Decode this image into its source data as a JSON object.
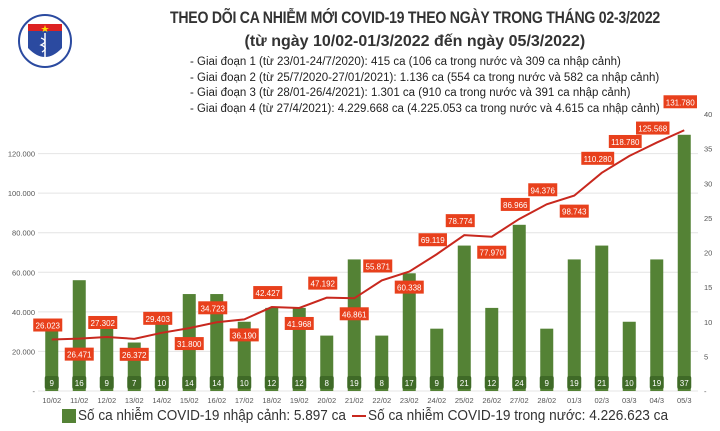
{
  "header": {
    "logo_text": "BỘ Y TẾ",
    "title": "THEO DÕI CA NHIỄM MỚI COVID-19 THEO NGÀY TRONG THÁNG 02-3/2022",
    "subtitle": "(từ ngày 10/02-01/3/2022 đến ngày 05/3/2022)",
    "notes": [
      "- Giai đoạn 1 (từ 23/01-24/7/2020): 415 ca (106 ca trong nước và 309 ca nhập cảnh)",
      "- Giai đoạn 2 (từ 25/7/2020-27/01/2021): 1.136 ca (554 ca trong nước và 582 ca nhập cảnh)",
      "- Giai đoạn 3 (từ 28/01-26/4/2021): 1.301 ca (910 ca trong nước và 391 ca nhập cảnh)",
      "- Giai đoạn 4 (từ 27/4/2021): 4.229.668 ca (4.225.053 ca trong nước và 4.615 ca nhập cảnh)"
    ]
  },
  "chart_data": {
    "type": "bar+line",
    "categories": [
      "10/02",
      "11/02",
      "12/02",
      "13/02",
      "14/02",
      "15/02",
      "16/02",
      "17/02",
      "18/02",
      "19/02",
      "20/02",
      "21/02",
      "22/02",
      "23/02",
      "24/02",
      "25/02",
      "26/02",
      "27/02",
      "28/02",
      "01/3",
      "02/3",
      "03/3",
      "04/3",
      "05/3"
    ],
    "series": [
      {
        "name": "Số ca nhiễm COVID-19 nhập cảnh: 5.897 ca",
        "type": "bar",
        "axis": "right",
        "color": "#548235",
        "values": [
          9,
          16,
          9,
          7,
          10,
          14,
          14,
          10,
          12,
          12,
          8,
          19,
          8,
          17,
          9,
          21,
          12,
          24,
          9,
          19,
          21,
          10,
          19,
          37
        ]
      },
      {
        "name": "Số ca nhiễm COVID-19 trong nước: 4.226.623 ca",
        "type": "line",
        "axis": "left",
        "color": "#c8281e",
        "values": [
          26023,
          26471,
          27302,
          26372,
          29403,
          31800,
          34723,
          36190,
          42427,
          41968,
          47192,
          46861,
          55871,
          60338,
          69119,
          78774,
          77970,
          86966,
          94376,
          98743,
          110280,
          118780,
          125568,
          131780
        ],
        "labels": [
          "26.023",
          "26.471",
          "27.302",
          "26.372",
          "29.403",
          "31.800",
          "34.723",
          "36.190",
          "42.427",
          "41.968",
          "47.192",
          "46.861",
          "55.871",
          "60.338",
          "69.119",
          "78.774",
          "77.970",
          "86.966",
          "94.376",
          "98.743",
          "110.280",
          "118.780",
          "125.568",
          "131.780"
        ]
      }
    ],
    "left_axis": {
      "ylim": [
        0,
        140000
      ],
      "ticks": [
        "-",
        "20.000",
        "40.000",
        "60.000",
        "80.000",
        "100.000",
        "120.000"
      ]
    },
    "right_axis": {
      "ylim": [
        0,
        40
      ],
      "ticks": [
        "-",
        "5",
        "10",
        "15",
        "20",
        "25",
        "30",
        "35",
        "40"
      ]
    },
    "grid": true,
    "legend": "bottom",
    "label_color": "#e8401c"
  }
}
